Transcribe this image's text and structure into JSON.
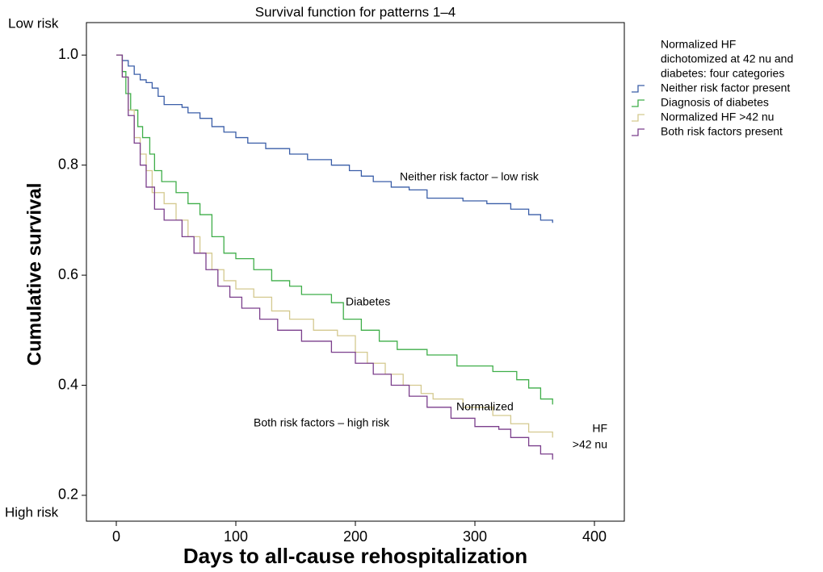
{
  "chart_data": {
    "type": "step",
    "title": "Survival function for patterns 1–4",
    "x_label": "Days to all-cause rehospitalization",
    "y_label": "Cumulative survival",
    "y_top_note": "Low risk",
    "y_bottom_note": "High risk",
    "legend_title": [
      "Normalized HF",
      "dichotomized at 42 nu and",
      "diabetes: four categories"
    ],
    "xlim": [
      -25,
      425
    ],
    "xticks": [
      0,
      100,
      200,
      300,
      400
    ],
    "ylim": [
      0.153,
      1.059
    ],
    "yticks": [
      0.2,
      0.4,
      0.6,
      0.8,
      {
        "value": 1,
        "label": "1.0"
      }
    ],
    "annotations": [
      "Neither risk factor – low risk",
      "Diabetes",
      "Normalized",
      "HF",
      ">42 nu",
      "Both risk factors – high risk"
    ],
    "series": [
      {
        "name": "Neither risk factor present",
        "color": "#3a5ea8",
        "x": [
          0,
          5,
          10,
          15,
          20,
          25,
          30,
          35,
          40,
          55,
          60,
          70,
          80,
          90,
          100,
          110,
          125,
          145,
          160,
          180,
          195,
          205,
          215,
          230,
          245,
          260,
          290,
          310,
          330,
          345,
          355,
          365
        ],
        "values": [
          1.0,
          0.99,
          0.98,
          0.965,
          0.955,
          0.95,
          0.94,
          0.925,
          0.91,
          0.905,
          0.895,
          0.885,
          0.87,
          0.86,
          0.85,
          0.84,
          0.83,
          0.82,
          0.81,
          0.8,
          0.79,
          0.78,
          0.77,
          0.76,
          0.755,
          0.74,
          0.735,
          0.73,
          0.72,
          0.71,
          0.7,
          0.695
        ]
      },
      {
        "name": "Diagnosis of diabetes",
        "color": "#3fae49",
        "x": [
          0,
          5,
          8,
          12,
          18,
          22,
          28,
          32,
          38,
          50,
          60,
          70,
          80,
          90,
          100,
          115,
          130,
          145,
          155,
          180,
          190,
          205,
          220,
          235,
          260,
          285,
          315,
          335,
          345,
          355,
          365
        ],
        "values": [
          1.0,
          0.97,
          0.93,
          0.9,
          0.87,
          0.85,
          0.82,
          0.79,
          0.77,
          0.75,
          0.73,
          0.71,
          0.67,
          0.64,
          0.63,
          0.61,
          0.59,
          0.58,
          0.565,
          0.55,
          0.52,
          0.5,
          0.48,
          0.465,
          0.455,
          0.435,
          0.425,
          0.41,
          0.395,
          0.375,
          0.365
        ]
      },
      {
        "name": "Normalized HF >42 nu",
        "color": "#d4c98f",
        "x": [
          0,
          5,
          10,
          15,
          20,
          25,
          30,
          40,
          50,
          60,
          70,
          80,
          90,
          100,
          115,
          130,
          145,
          165,
          185,
          200,
          210,
          225,
          240,
          255,
          265,
          290,
          315,
          330,
          345,
          365
        ],
        "values": [
          1.0,
          0.96,
          0.9,
          0.85,
          0.82,
          0.79,
          0.75,
          0.73,
          0.7,
          0.67,
          0.64,
          0.61,
          0.59,
          0.575,
          0.56,
          0.535,
          0.52,
          0.5,
          0.49,
          0.46,
          0.44,
          0.42,
          0.4,
          0.385,
          0.375,
          0.36,
          0.345,
          0.33,
          0.315,
          0.305
        ]
      },
      {
        "name": "Both risk factors present",
        "color": "#7b3f8c",
        "x": [
          0,
          5,
          10,
          15,
          20,
          25,
          32,
          40,
          55,
          65,
          75,
          85,
          95,
          105,
          120,
          135,
          155,
          180,
          200,
          215,
          230,
          245,
          260,
          280,
          300,
          320,
          330,
          345,
          355,
          365
        ],
        "values": [
          1.0,
          0.96,
          0.89,
          0.84,
          0.8,
          0.76,
          0.72,
          0.7,
          0.67,
          0.64,
          0.61,
          0.58,
          0.56,
          0.54,
          0.52,
          0.5,
          0.48,
          0.46,
          0.44,
          0.42,
          0.4,
          0.38,
          0.36,
          0.34,
          0.325,
          0.32,
          0.305,
          0.29,
          0.275,
          0.265
        ]
      }
    ]
  }
}
